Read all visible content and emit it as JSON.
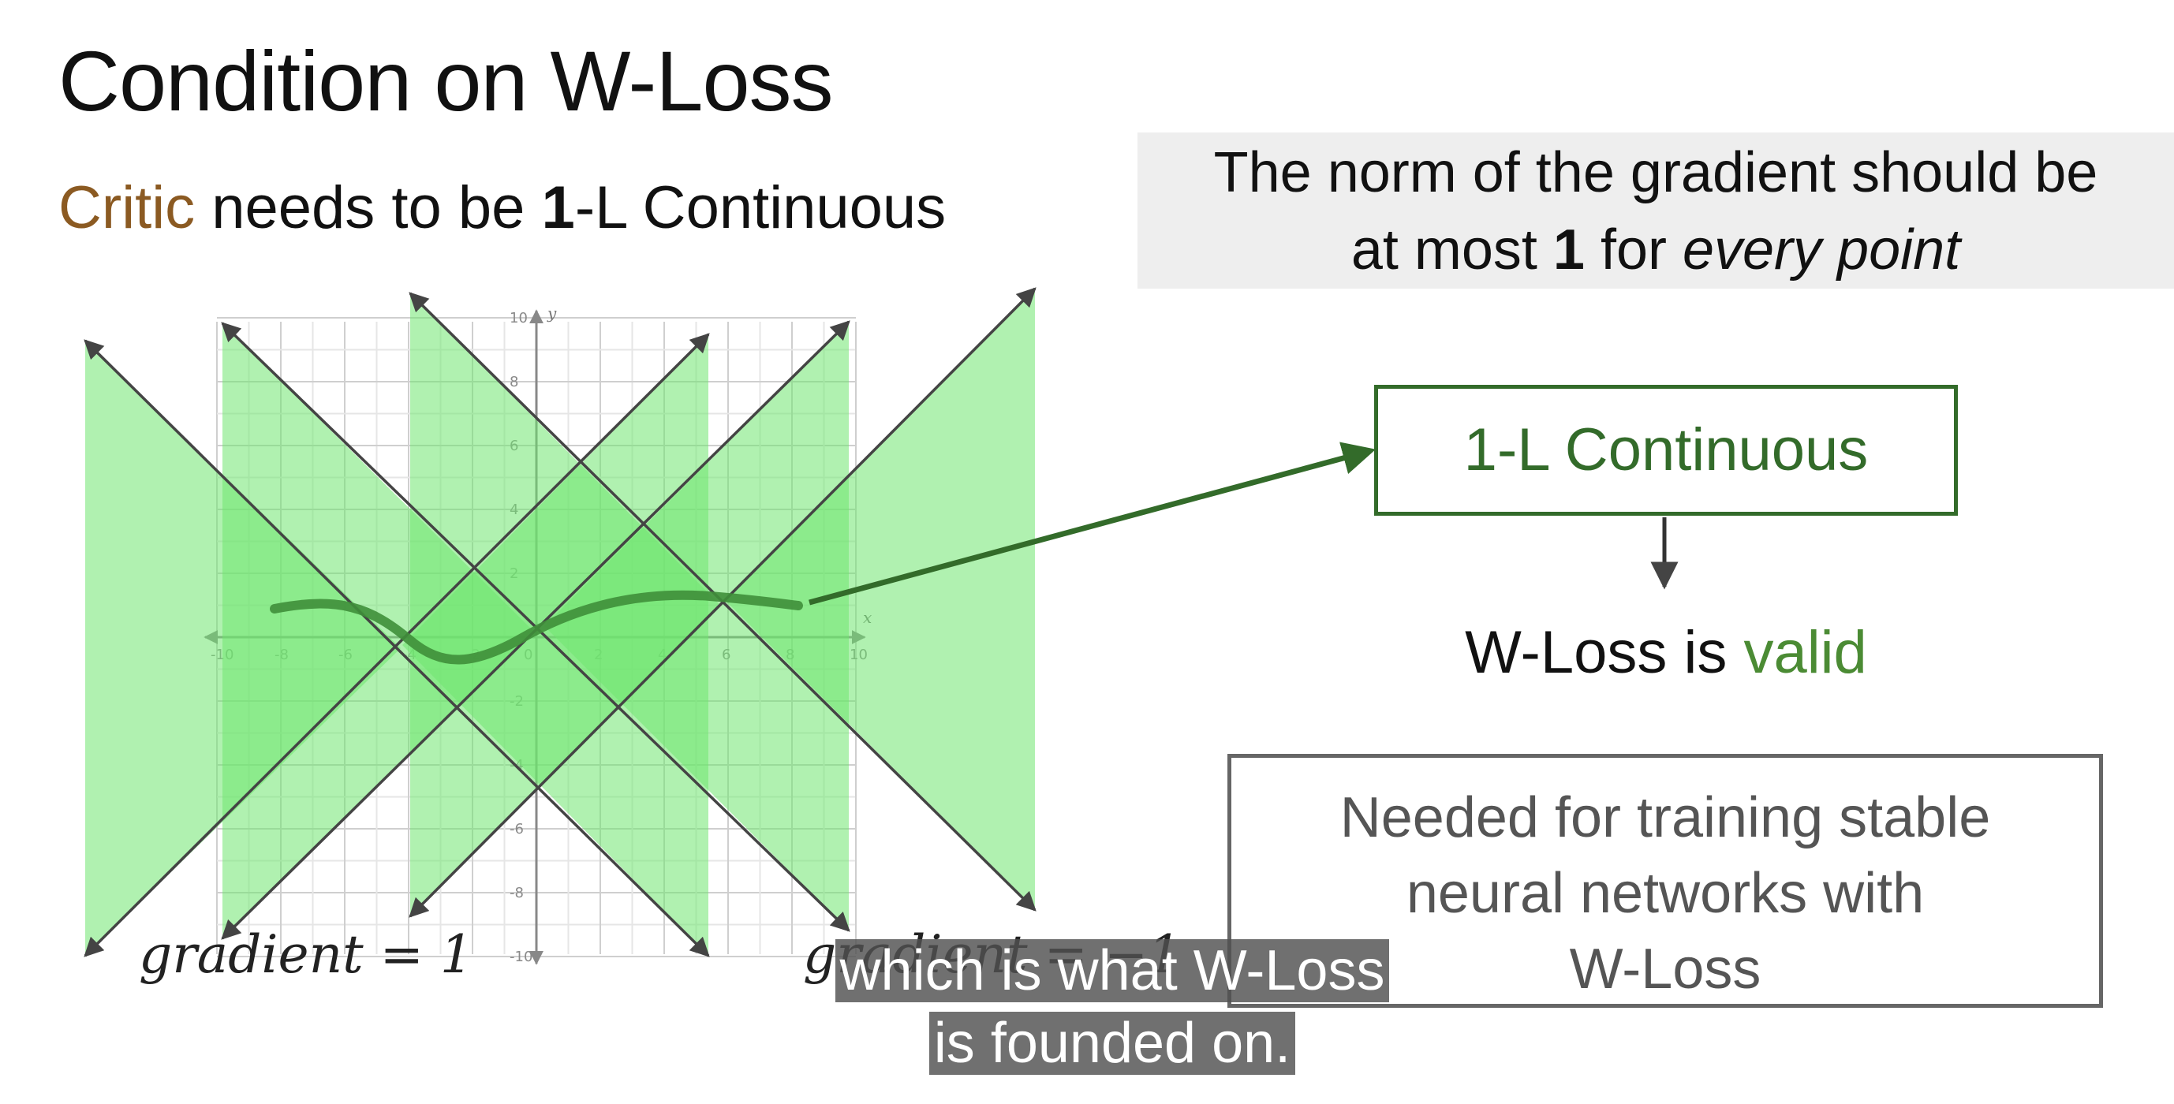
{
  "title": "Condition on W-Loss",
  "subtitle": {
    "critic": "Critic",
    "rest1": " needs to be ",
    "bold": "1",
    "rest2": "-L Continuous"
  },
  "norm_box": {
    "line1": "The norm of the gradient should be",
    "line2_pre": "at most ",
    "line2_bold": "1",
    "line2_mid": " for ",
    "line2_italic": "every point"
  },
  "continuous_box": "1-L Continuous",
  "wloss": {
    "pre": "W-Loss is ",
    "valid": "valid"
  },
  "needed_box": [
    "Needed for training stable",
    "neural networks with",
    "W-Loss"
  ],
  "gradient_labels": {
    "left": "gradient = 1",
    "right": "gradient = −1"
  },
  "caption": [
    "which is what W-Loss",
    "is founded on."
  ],
  "graph": {
    "x_ticks": [
      "-10",
      "-8",
      "-6",
      "-4",
      "-2",
      "0",
      "2",
      "4",
      "6",
      "8",
      "10"
    ],
    "y_ticks": [
      "10",
      "8",
      "6",
      "4",
      "2",
      "-2",
      "-4",
      "-6",
      "-8",
      "-10"
    ],
    "x_label": "x",
    "y_label": "y"
  },
  "colors": {
    "cone_fill": "#6fe66f",
    "curve": "#3f8f3a",
    "box_green": "#336b2a",
    "critic_brown": "#8b5a22",
    "valid_green": "#4b8b34"
  }
}
